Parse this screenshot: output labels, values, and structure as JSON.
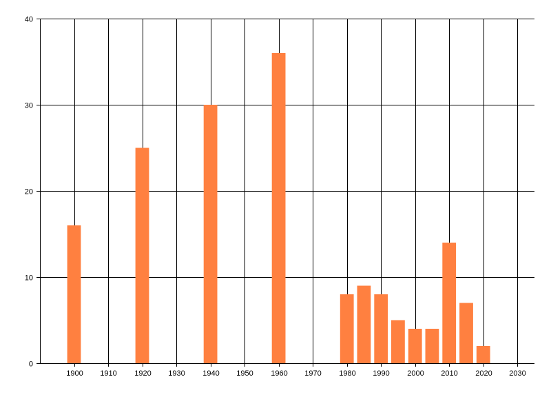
{
  "chart_data": {
    "type": "bar",
    "title": "",
    "xlabel": "",
    "ylabel": "",
    "x": [
      1900,
      1920,
      1940,
      1960,
      1980,
      1985,
      1990,
      1995,
      2000,
      2005,
      2010,
      2015,
      2020
    ],
    "values": [
      16,
      25,
      30,
      36,
      8,
      9,
      8,
      5,
      4,
      4,
      14,
      7,
      2
    ],
    "xlim": [
      1890,
      2035
    ],
    "ylim": [
      0,
      40
    ],
    "x_ticks": [
      1900,
      1910,
      1920,
      1930,
      1940,
      1950,
      1960,
      1970,
      1980,
      1990,
      2000,
      2010,
      2020,
      2030
    ],
    "y_ticks": [
      0,
      10,
      20,
      30,
      40
    ],
    "grid": true,
    "bar_color": "#ff8040",
    "legend": "none"
  }
}
